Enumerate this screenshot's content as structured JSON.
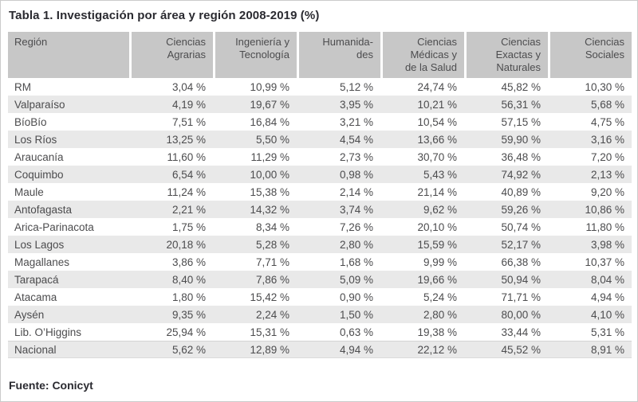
{
  "title": "Tabla 1. Investigación por área y región 2008-2019 (%)",
  "source_note": "Fuente: Conicyt",
  "colors": {
    "header_bg": "#c7c7c7",
    "row_alt_bg": "#e9e9e9",
    "body_text": "#4c4c4e",
    "title_text": "#2a2a30"
  },
  "table": {
    "columns": [
      "Región",
      "Ciencias\nAgrarias",
      "Ingeniería y\nTecnología",
      "Humanida-\ndes",
      "Ciencias\nMédicas y\nde la Salud",
      "Ciencias\nExactas y\nNaturales",
      "Ciencias\nSociales"
    ],
    "rows": [
      [
        "RM",
        "3,04 %",
        "10,99 %",
        "5,12 %",
        "24,74 %",
        "45,82 %",
        "10,30 %"
      ],
      [
        "Valparaíso",
        "4,19 %",
        "19,67 %",
        "3,95 %",
        "10,21 %",
        "56,31 %",
        "5,68 %"
      ],
      [
        "BíoBío",
        "7,51 %",
        "16,84 %",
        "3,21 %",
        "10,54 %",
        "57,15 %",
        "4,75 %"
      ],
      [
        "Los Ríos",
        "13,25 %",
        "5,50 %",
        "4,54 %",
        "13,66 %",
        "59,90 %",
        "3,16 %"
      ],
      [
        "Araucanía",
        "11,60 %",
        "11,29 %",
        "2,73 %",
        "30,70 %",
        "36,48 %",
        "7,20 %"
      ],
      [
        "Coquimbo",
        "6,54 %",
        "10,00 %",
        "0,98 %",
        "5,43 %",
        "74,92 %",
        "2,13 %"
      ],
      [
        "Maule",
        "11,24 %",
        "15,38 %",
        "2,14 %",
        "21,14 %",
        "40,89 %",
        "9,20 %"
      ],
      [
        "Antofagasta",
        "2,21 %",
        "14,32 %",
        "3,74 %",
        "9,62 %",
        "59,26 %",
        "10,86 %"
      ],
      [
        "Arica-Parinacota",
        "1,75 %",
        "8,34 %",
        "7,26 %",
        "20,10 %",
        "50,74 %",
        "11,80 %"
      ],
      [
        "Los Lagos",
        "20,18 %",
        "5,28 %",
        "2,80 %",
        "15,59 %",
        "52,17 %",
        "3,98 %"
      ],
      [
        "Magallanes",
        "3,86 %",
        "7,71 %",
        "1,68 %",
        "9,99 %",
        "66,38 %",
        "10,37 %"
      ],
      [
        "Tarapacá",
        "8,40 %",
        "7,86 %",
        "5,09 %",
        "19,66 %",
        "50,94 %",
        "8,04 %"
      ],
      [
        "Atacama",
        "1,80 %",
        "15,42 %",
        "0,90 %",
        "5,24 %",
        "71,71 %",
        "4,94 %"
      ],
      [
        "Aysén",
        "9,35 %",
        "2,24 %",
        "1,50 %",
        "2,80 %",
        "80,00 %",
        "4,10 %"
      ],
      [
        "Lib. O’Higgins",
        "25,94 %",
        "15,31 %",
        "0,63 %",
        "19,38 %",
        "33,44 %",
        "5,31 %"
      ],
      [
        "Nacional",
        "5,62 %",
        "12,89 %",
        "4,94 %",
        "22,12 %",
        "45,52 %",
        "8,91 %"
      ]
    ]
  },
  "chart_data": {
    "type": "table",
    "title": "Tabla 1. Investigación por área y región 2008-2019 (%)",
    "unit": "%",
    "columns": [
      "Región",
      "Ciencias Agrarias",
      "Ingeniería y Tecnología",
      "Humanidades",
      "Ciencias Médicas y de la Salud",
      "Ciencias Exactas y Naturales",
      "Ciencias Sociales"
    ],
    "rows": [
      [
        "RM",
        3.04,
        10.99,
        5.12,
        24.74,
        45.82,
        10.3
      ],
      [
        "Valparaíso",
        4.19,
        19.67,
        3.95,
        10.21,
        56.31,
        5.68
      ],
      [
        "BíoBío",
        7.51,
        16.84,
        3.21,
        10.54,
        57.15,
        4.75
      ],
      [
        "Los Ríos",
        13.25,
        5.5,
        4.54,
        13.66,
        59.9,
        3.16
      ],
      [
        "Araucanía",
        11.6,
        11.29,
        2.73,
        30.7,
        36.48,
        7.2
      ],
      [
        "Coquimbo",
        6.54,
        10.0,
        0.98,
        5.43,
        74.92,
        2.13
      ],
      [
        "Maule",
        11.24,
        15.38,
        2.14,
        21.14,
        40.89,
        9.2
      ],
      [
        "Antofagasta",
        2.21,
        14.32,
        3.74,
        9.62,
        59.26,
        10.86
      ],
      [
        "Arica-Parinacota",
        1.75,
        8.34,
        7.26,
        20.1,
        50.74,
        11.8
      ],
      [
        "Los Lagos",
        20.18,
        5.28,
        2.8,
        15.59,
        52.17,
        3.98
      ],
      [
        "Magallanes",
        3.86,
        7.71,
        1.68,
        9.99,
        66.38,
        10.37
      ],
      [
        "Tarapacá",
        8.4,
        7.86,
        5.09,
        19.66,
        50.94,
        8.04
      ],
      [
        "Atacama",
        1.8,
        15.42,
        0.9,
        5.24,
        71.71,
        4.94
      ],
      [
        "Aysén",
        9.35,
        2.24,
        1.5,
        2.8,
        80.0,
        4.1
      ],
      [
        "Lib. O’Higgins",
        25.94,
        15.31,
        0.63,
        19.38,
        33.44,
        5.31
      ],
      [
        "Nacional",
        5.62,
        12.89,
        4.94,
        22.12,
        45.52,
        8.91
      ]
    ],
    "source": "Fuente: Conicyt"
  }
}
